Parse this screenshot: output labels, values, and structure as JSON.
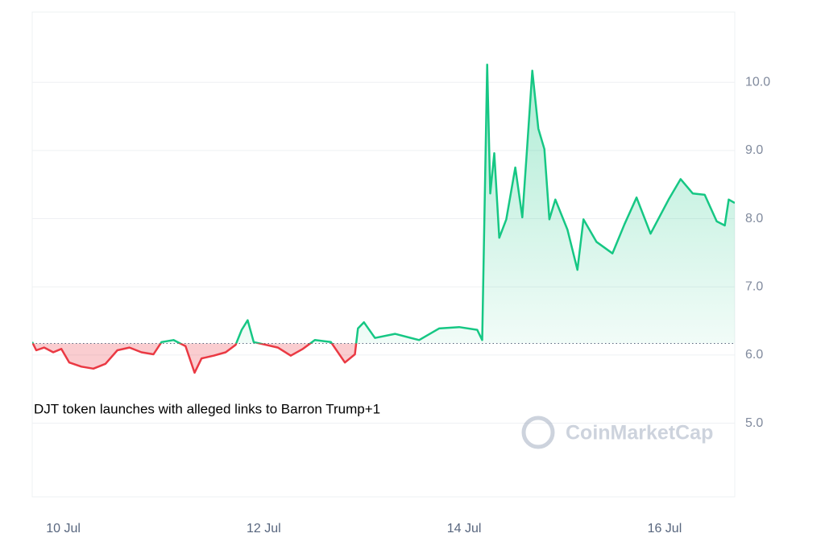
{
  "chart_data": {
    "type": "line",
    "annotation": "DJT token launches with alleged links to Barron Trump+1",
    "watermark": "CoinMarketCap",
    "x": [
      9.69,
      9.73,
      9.81,
      9.9,
      9.98,
      10.06,
      10.18,
      10.3,
      10.42,
      10.54,
      10.66,
      10.78,
      10.9,
      10.98,
      11.1,
      11.22,
      11.31,
      11.38,
      11.5,
      11.62,
      11.72,
      11.78,
      11.84,
      11.9,
      12.02,
      12.14,
      12.27,
      12.39,
      12.51,
      12.67,
      12.81,
      12.91,
      12.94,
      13.0,
      13.11,
      13.31,
      13.55,
      13.75,
      13.95,
      14.13,
      14.18,
      14.23,
      14.26,
      14.3,
      14.35,
      14.42,
      14.51,
      14.58,
      14.63,
      14.68,
      14.74,
      14.8,
      14.85,
      14.91,
      15.03,
      15.13,
      15.19,
      15.32,
      15.48,
      15.6,
      15.72,
      15.86,
      16.04,
      16.16,
      16.28,
      16.4,
      16.52,
      16.6,
      16.64,
      16.7
    ],
    "series": [
      {
        "values": [
          6.19,
          6.07,
          6.11,
          6.04,
          6.09,
          5.89,
          5.83,
          5.8,
          5.87,
          6.07,
          6.11,
          6.04,
          6.01,
          6.19,
          6.22,
          6.13,
          5.74,
          5.95,
          5.99,
          6.04,
          6.15,
          6.37,
          6.51,
          6.19,
          6.15,
          6.11,
          5.99,
          6.09,
          6.22,
          6.19,
          5.89,
          6.01,
          6.39,
          6.48,
          6.25,
          6.31,
          6.22,
          6.39,
          6.41,
          6.37,
          6.22,
          10.26,
          8.37,
          8.96,
          7.72,
          7.99,
          8.75,
          8.02,
          9.08,
          10.17,
          9.32,
          9.02,
          7.99,
          8.28,
          7.84,
          7.25,
          7.99,
          7.66,
          7.49,
          7.92,
          8.31,
          7.78,
          8.28,
          8.58,
          8.37,
          8.35,
          7.96,
          7.9,
          8.28,
          8.23
        ],
        "color": "#16c784",
        "color_below": "#ea3943"
      }
    ],
    "baseline": 6.17,
    "xlim": [
      9.69,
      16.7
    ],
    "xticks": [
      {
        "value": 10,
        "label": "10 Jul"
      },
      {
        "value": 12,
        "label": "12 Jul"
      },
      {
        "value": 14,
        "label": "14 Jul"
      },
      {
        "value": 16,
        "label": "16 Jul"
      }
    ],
    "ylim": [
      3.92,
      11.03
    ],
    "yticks": [
      {
        "value": 5,
        "label": "5.0"
      },
      {
        "value": 6,
        "label": "6.0"
      },
      {
        "value": 7,
        "label": "7.0"
      },
      {
        "value": 8,
        "label": "8.0"
      },
      {
        "value": 9,
        "label": "9.0"
      },
      {
        "value": 10,
        "label": "10.0"
      }
    ],
    "grid": true
  }
}
